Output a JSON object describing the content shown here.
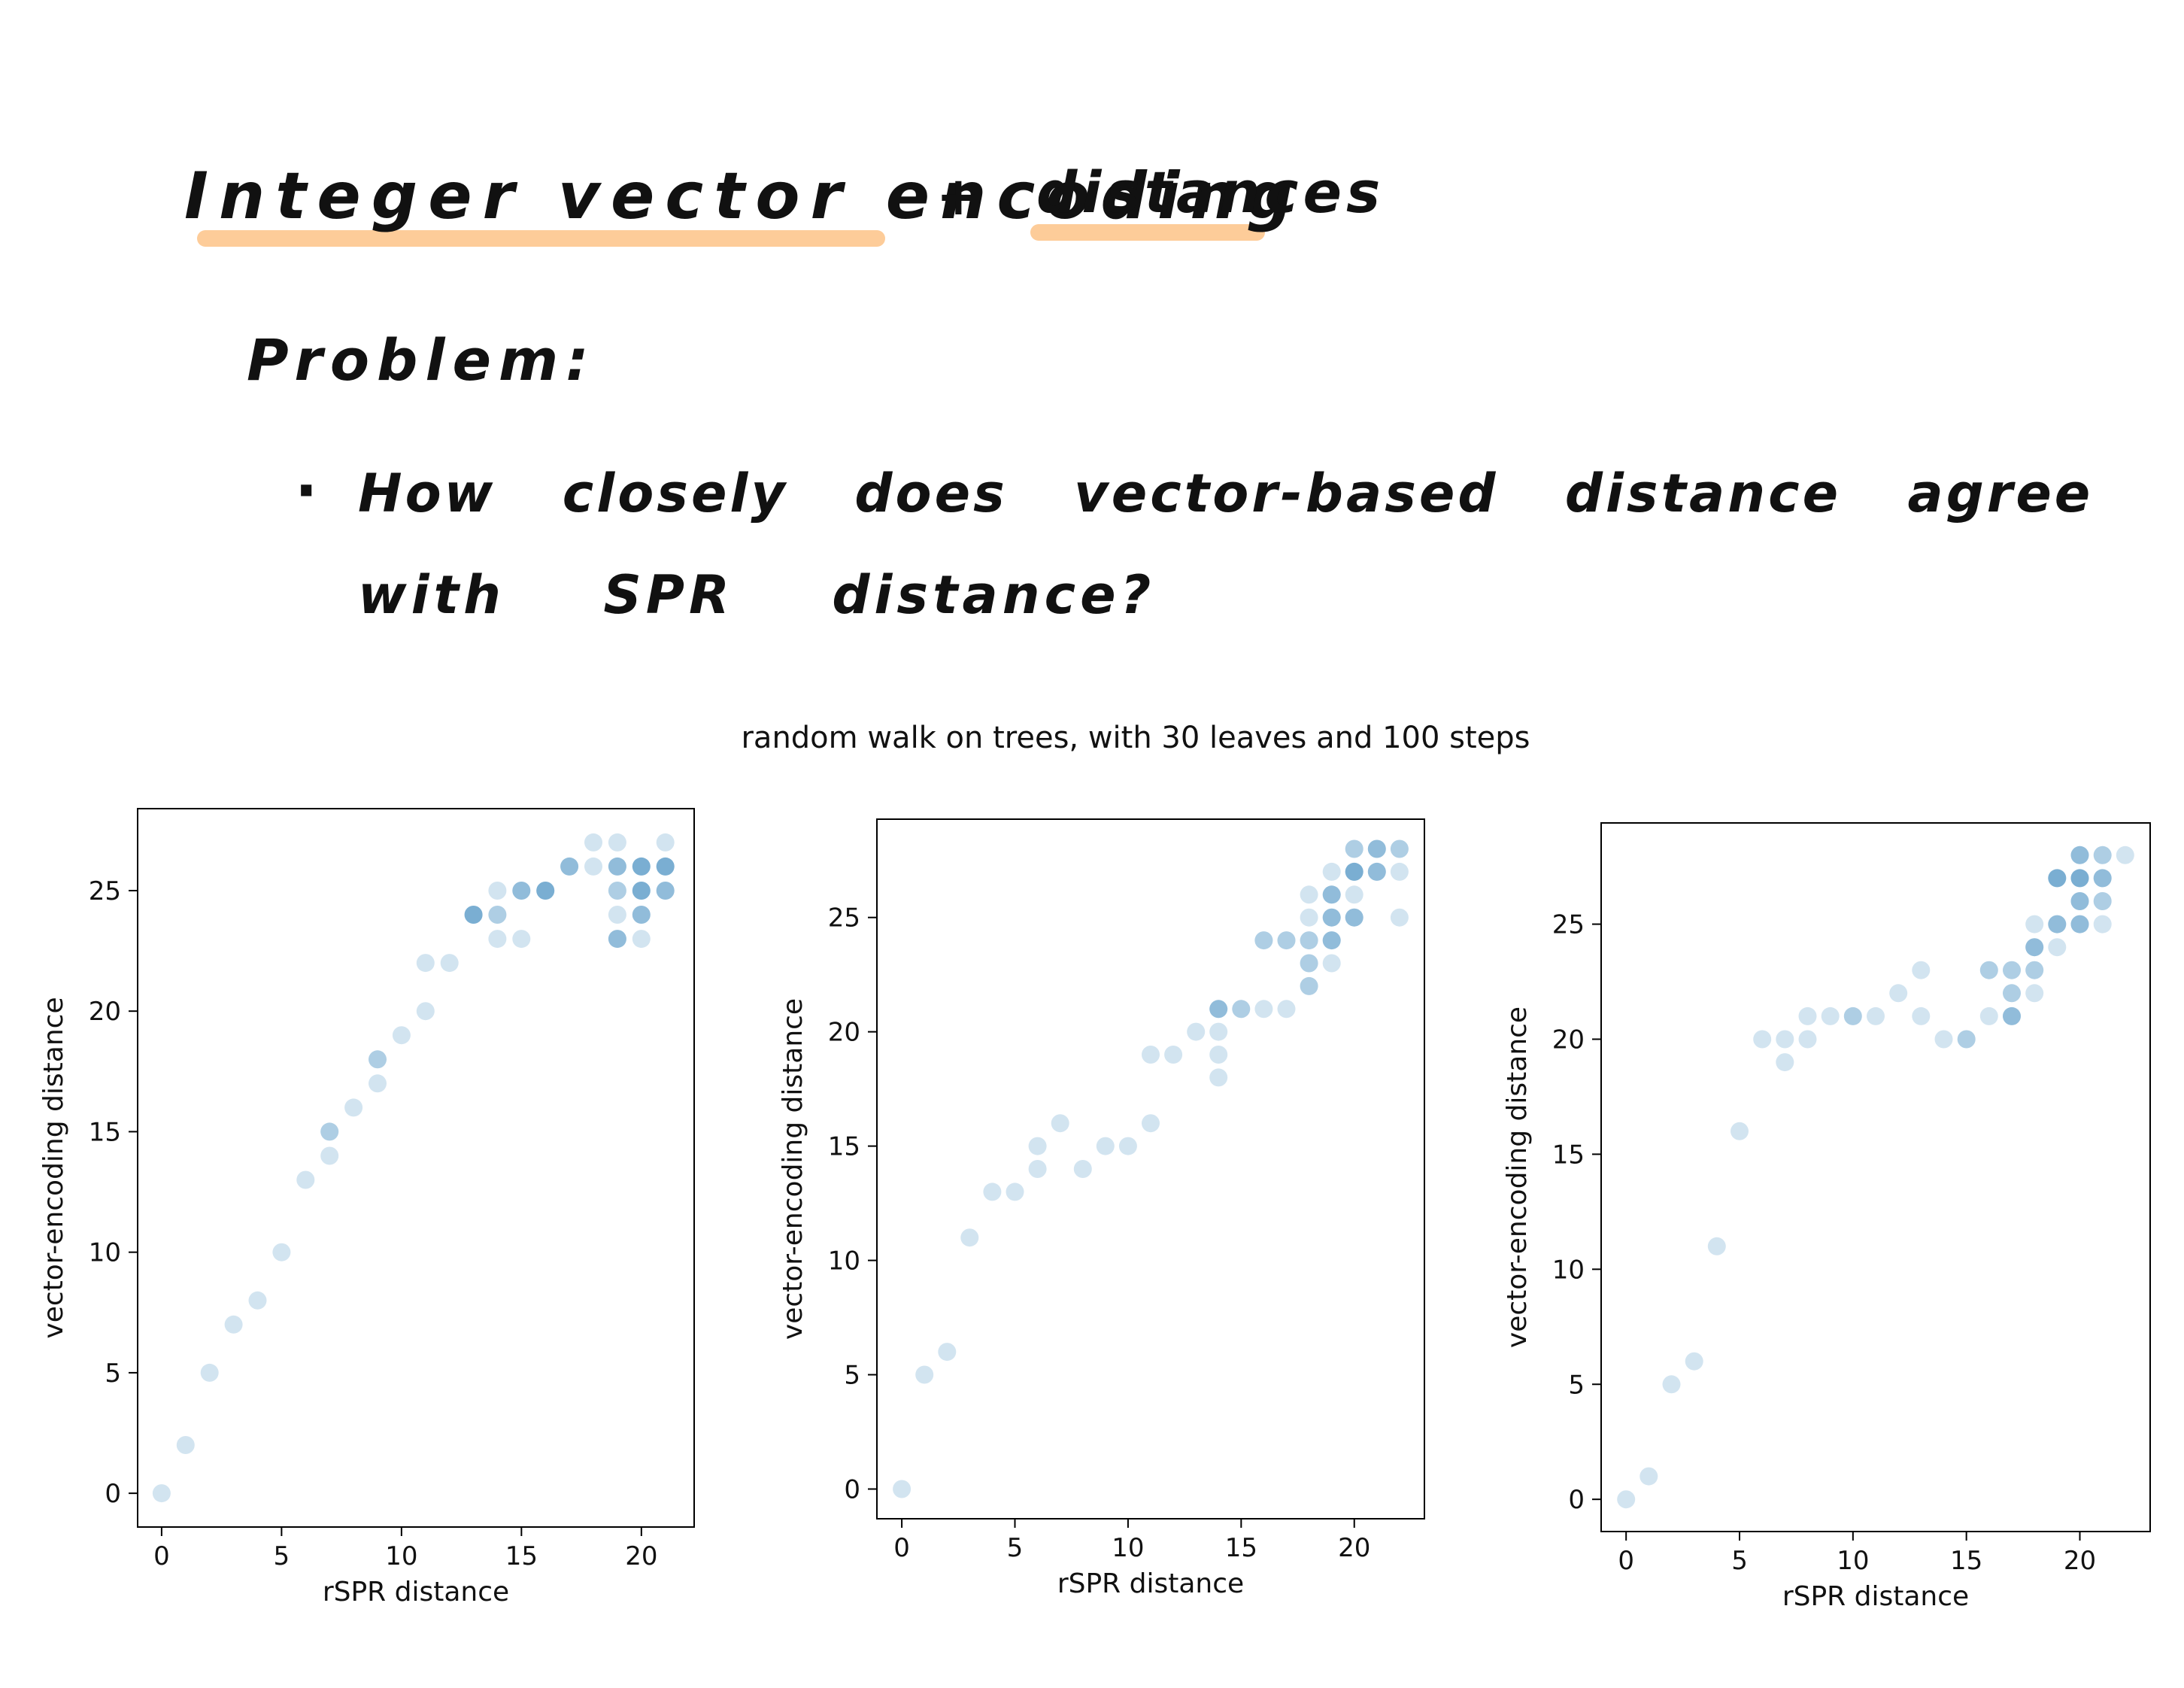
{
  "notes": {
    "heading_part1": "Integer vector encoding",
    "heading_amp": "+",
    "heading_part2": "distances",
    "problem_label": "Problem:",
    "bullet": "·",
    "question_line1": "How closely does vector-based distance agree",
    "question_line2": "with SPR distance?"
  },
  "colors": {
    "highlight": "#fdcc99",
    "point": "#1f77b4",
    "ink": "#111111"
  },
  "figure_title": "random walk on trees, with 30 leaves and 100 steps",
  "chart_data": [
    {
      "type": "scatter",
      "title": "",
      "xlabel": "rSPR distance",
      "ylabel": "vector-encoding distance",
      "xlim": [
        -1,
        22.2
      ],
      "ylim": [
        -1.4,
        28.4
      ],
      "xticks": [
        0,
        5,
        10,
        15,
        20
      ],
      "yticks": [
        0,
        5,
        10,
        15,
        20,
        25
      ],
      "grid": false,
      "point_alpha": 0.2,
      "points": [
        [
          0,
          0
        ],
        [
          1,
          2
        ],
        [
          2,
          5
        ],
        [
          3,
          7
        ],
        [
          4,
          8
        ],
        [
          5,
          10
        ],
        [
          6,
          13
        ],
        [
          7,
          14
        ],
        [
          7,
          15
        ],
        [
          7,
          15
        ],
        [
          8,
          16
        ],
        [
          9,
          17
        ],
        [
          9,
          18
        ],
        [
          9,
          18
        ],
        [
          10,
          19
        ],
        [
          11,
          20
        ],
        [
          11,
          22
        ],
        [
          12,
          22
        ],
        [
          13,
          24
        ],
        [
          13,
          24
        ],
        [
          13,
          24
        ],
        [
          13,
          24
        ],
        [
          14,
          23
        ],
        [
          14,
          24
        ],
        [
          14,
          24
        ],
        [
          14,
          25
        ],
        [
          15,
          23
        ],
        [
          15,
          25
        ],
        [
          15,
          25
        ],
        [
          15,
          25
        ],
        [
          16,
          25
        ],
        [
          16,
          25
        ],
        [
          16,
          25
        ],
        [
          16,
          25
        ],
        [
          17,
          26
        ],
        [
          17,
          26
        ],
        [
          17,
          26
        ],
        [
          18,
          26
        ],
        [
          18,
          27
        ],
        [
          19,
          23
        ],
        [
          19,
          23
        ],
        [
          19,
          23
        ],
        [
          19,
          24
        ],
        [
          19,
          25
        ],
        [
          19,
          25
        ],
        [
          19,
          26
        ],
        [
          19,
          26
        ],
        [
          19,
          26
        ],
        [
          19,
          27
        ],
        [
          20,
          23
        ],
        [
          20,
          24
        ],
        [
          20,
          24
        ],
        [
          20,
          24
        ],
        [
          20,
          25
        ],
        [
          20,
          25
        ],
        [
          20,
          25
        ],
        [
          20,
          25
        ],
        [
          20,
          26
        ],
        [
          20,
          26
        ],
        [
          20,
          26
        ],
        [
          20,
          26
        ],
        [
          21,
          25
        ],
        [
          21,
          25
        ],
        [
          21,
          25
        ],
        [
          21,
          26
        ],
        [
          21,
          26
        ],
        [
          21,
          26
        ],
        [
          21,
          26
        ],
        [
          21,
          27
        ]
      ]
    },
    {
      "type": "scatter",
      "title": "",
      "xlabel": "rSPR distance",
      "ylabel": "vector-encoding distance",
      "xlim": [
        -1.1,
        23.1
      ],
      "ylim": [
        -1.3,
        29.3
      ],
      "xticks": [
        0,
        5,
        10,
        15,
        20
      ],
      "yticks": [
        0,
        5,
        10,
        15,
        20,
        25
      ],
      "grid": false,
      "point_alpha": 0.2,
      "points": [
        [
          0,
          0
        ],
        [
          1,
          5
        ],
        [
          2,
          6
        ],
        [
          3,
          11
        ],
        [
          4,
          13
        ],
        [
          5,
          13
        ],
        [
          6,
          14
        ],
        [
          6,
          15
        ],
        [
          7,
          16
        ],
        [
          8,
          14
        ],
        [
          9,
          15
        ],
        [
          10,
          15
        ],
        [
          11,
          16
        ],
        [
          11,
          19
        ],
        [
          12,
          19
        ],
        [
          13,
          20
        ],
        [
          14,
          18
        ],
        [
          14,
          19
        ],
        [
          14,
          20
        ],
        [
          14,
          21
        ],
        [
          14,
          21
        ],
        [
          14,
          21
        ],
        [
          15,
          21
        ],
        [
          15,
          21
        ],
        [
          16,
          21
        ],
        [
          16,
          24
        ],
        [
          16,
          24
        ],
        [
          17,
          21
        ],
        [
          17,
          24
        ],
        [
          17,
          24
        ],
        [
          18,
          22
        ],
        [
          18,
          22
        ],
        [
          18,
          23
        ],
        [
          18,
          23
        ],
        [
          18,
          24
        ],
        [
          18,
          24
        ],
        [
          18,
          25
        ],
        [
          18,
          26
        ],
        [
          19,
          23
        ],
        [
          19,
          24
        ],
        [
          19,
          24
        ],
        [
          19,
          24
        ],
        [
          19,
          25
        ],
        [
          19,
          25
        ],
        [
          19,
          25
        ],
        [
          19,
          26
        ],
        [
          19,
          26
        ],
        [
          19,
          26
        ],
        [
          19,
          27
        ],
        [
          20,
          25
        ],
        [
          20,
          25
        ],
        [
          20,
          25
        ],
        [
          20,
          26
        ],
        [
          20,
          27
        ],
        [
          20,
          27
        ],
        [
          20,
          27
        ],
        [
          20,
          27
        ],
        [
          20,
          28
        ],
        [
          20,
          28
        ],
        [
          21,
          27
        ],
        [
          21,
          27
        ],
        [
          21,
          27
        ],
        [
          21,
          28
        ],
        [
          21,
          28
        ],
        [
          21,
          28
        ],
        [
          22,
          25
        ],
        [
          22,
          27
        ],
        [
          22,
          28
        ],
        [
          22,
          28
        ]
      ]
    },
    {
      "type": "scatter",
      "title": "",
      "xlabel": "rSPR distance",
      "ylabel": "vector-encoding distance",
      "xlim": [
        -1.1,
        23.1
      ],
      "ylim": [
        -1.4,
        29.4
      ],
      "xticks": [
        0,
        5,
        10,
        15,
        20
      ],
      "yticks": [
        0,
        5,
        10,
        15,
        20,
        25
      ],
      "grid": false,
      "point_alpha": 0.2,
      "points": [
        [
          0,
          0
        ],
        [
          1,
          1
        ],
        [
          2,
          5
        ],
        [
          3,
          6
        ],
        [
          4,
          11
        ],
        [
          5,
          16
        ],
        [
          6,
          20
        ],
        [
          7,
          19
        ],
        [
          7,
          20
        ],
        [
          8,
          20
        ],
        [
          8,
          21
        ],
        [
          9,
          21
        ],
        [
          10,
          21
        ],
        [
          10,
          21
        ],
        [
          11,
          21
        ],
        [
          12,
          22
        ],
        [
          13,
          21
        ],
        [
          13,
          23
        ],
        [
          14,
          20
        ],
        [
          15,
          20
        ],
        [
          15,
          20
        ],
        [
          16,
          21
        ],
        [
          16,
          23
        ],
        [
          16,
          23
        ],
        [
          17,
          21
        ],
        [
          17,
          21
        ],
        [
          17,
          21
        ],
        [
          17,
          22
        ],
        [
          17,
          22
        ],
        [
          17,
          23
        ],
        [
          17,
          23
        ],
        [
          18,
          22
        ],
        [
          18,
          23
        ],
        [
          18,
          23
        ],
        [
          18,
          24
        ],
        [
          18,
          24
        ],
        [
          18,
          24
        ],
        [
          18,
          25
        ],
        [
          19,
          24
        ],
        [
          19,
          25
        ],
        [
          19,
          25
        ],
        [
          19,
          25
        ],
        [
          19,
          27
        ],
        [
          19,
          27
        ],
        [
          19,
          27
        ],
        [
          19,
          27
        ],
        [
          20,
          25
        ],
        [
          20,
          25
        ],
        [
          20,
          25
        ],
        [
          20,
          26
        ],
        [
          20,
          26
        ],
        [
          20,
          26
        ],
        [
          20,
          27
        ],
        [
          20,
          27
        ],
        [
          20,
          27
        ],
        [
          20,
          27
        ],
        [
          20,
          28
        ],
        [
          20,
          28
        ],
        [
          20,
          28
        ],
        [
          21,
          25
        ],
        [
          21,
          26
        ],
        [
          21,
          26
        ],
        [
          21,
          27
        ],
        [
          21,
          27
        ],
        [
          21,
          27
        ],
        [
          21,
          28
        ],
        [
          21,
          28
        ],
        [
          22,
          28
        ]
      ]
    }
  ]
}
